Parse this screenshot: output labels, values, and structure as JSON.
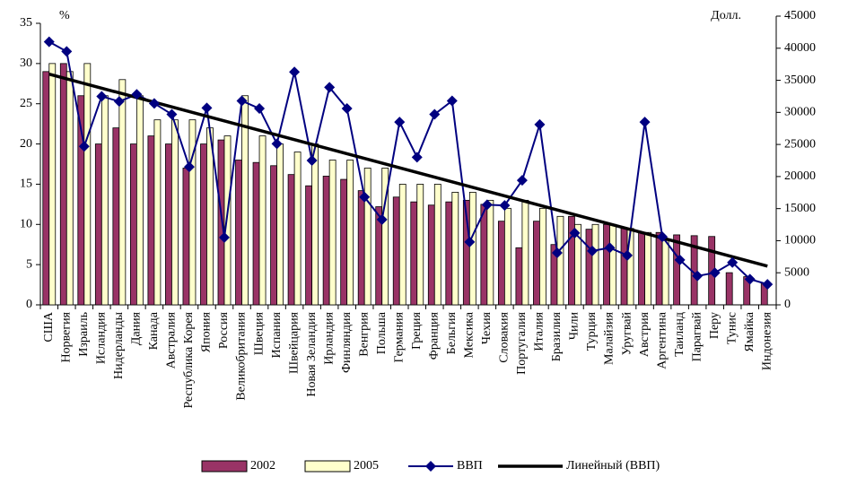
{
  "chart_data": {
    "type": "bar-line",
    "ylabel": "%",
    "y2label": "Долл.",
    "categories": [
      "США",
      "Норвегия",
      "Израиль",
      "Исландия",
      "Нидерланды",
      "Дания",
      "Канада",
      "Австралия",
      "Республика Корея",
      "Япония",
      "Россия",
      "Великобритания",
      "Швеция",
      "Испания",
      "Швейцария",
      "Новая Зеландия",
      "Ирландия",
      "Финляндия",
      "Венгрия",
      "Польша",
      "Германия",
      "Греция",
      "Франция",
      "Бельгия",
      "Мексика",
      "Чехия",
      "Словакия",
      "Португалия",
      "Италия",
      "Бразилия",
      "Чили",
      "Турция",
      "Малайзия",
      "Уругвай",
      "Австрия",
      "Аргентина",
      "Таиланд",
      "Парагвай",
      "Перу",
      "Тунис",
      "Ямайка",
      "Индонезия"
    ],
    "series": [
      {
        "name": "2002",
        "type": "bar",
        "color": "#993366",
        "values": [
          29,
          30,
          26,
          20,
          22,
          20,
          21,
          20,
          17,
          20,
          20.5,
          18,
          17.7,
          17.3,
          16.2,
          14.8,
          16,
          15.6,
          14.2,
          12.2,
          13.4,
          12.8,
          12.4,
          12.8,
          13,
          12.5,
          10.4,
          7.1,
          10.4,
          7.5,
          11,
          9.4,
          10,
          9.5,
          9,
          9,
          8.7,
          8.6,
          8.5,
          4,
          3.5,
          2.7
        ]
      },
      {
        "name": "2005",
        "type": "bar",
        "color": "#ffffcc",
        "values": [
          30,
          29,
          30,
          26,
          28,
          26,
          23,
          23,
          23,
          22,
          21,
          26,
          21,
          20,
          19,
          20,
          18,
          18,
          17,
          17,
          15,
          15,
          15,
          14,
          14,
          13,
          12,
          13,
          12,
          11,
          10,
          10,
          10,
          9.5,
          9,
          8,
          null,
          null,
          null,
          null,
          null,
          null
        ]
      },
      {
        "name": "ВВП",
        "type": "line",
        "axis": "y2",
        "color": "#000080",
        "marker": "diamond",
        "values": [
          41000,
          39500,
          24700,
          32500,
          31700,
          32800,
          31400,
          29700,
          21500,
          30700,
          10500,
          31800,
          30600,
          25100,
          36300,
          22500,
          33900,
          30600,
          16800,
          13300,
          28500,
          23000,
          29700,
          31800,
          9800,
          15600,
          15500,
          19400,
          28100,
          8100,
          11200,
          8400,
          8900,
          7700,
          28500,
          10600,
          7000,
          4500,
          5000,
          6600,
          4000,
          3200
        ],
        "trendline": {
          "name": "Линейный (ВВП)",
          "type": "linear",
          "color": "#000000"
        }
      }
    ],
    "ylim": [
      0,
      35
    ],
    "yticks": [
      0,
      5,
      10,
      15,
      20,
      25,
      30,
      35
    ],
    "y2lim": [
      0,
      45000
    ],
    "y2ticks": [
      0,
      5000,
      10000,
      15000,
      20000,
      25000,
      30000,
      35000,
      40000,
      45000
    ],
    "grid": false,
    "legend": "bottom"
  }
}
